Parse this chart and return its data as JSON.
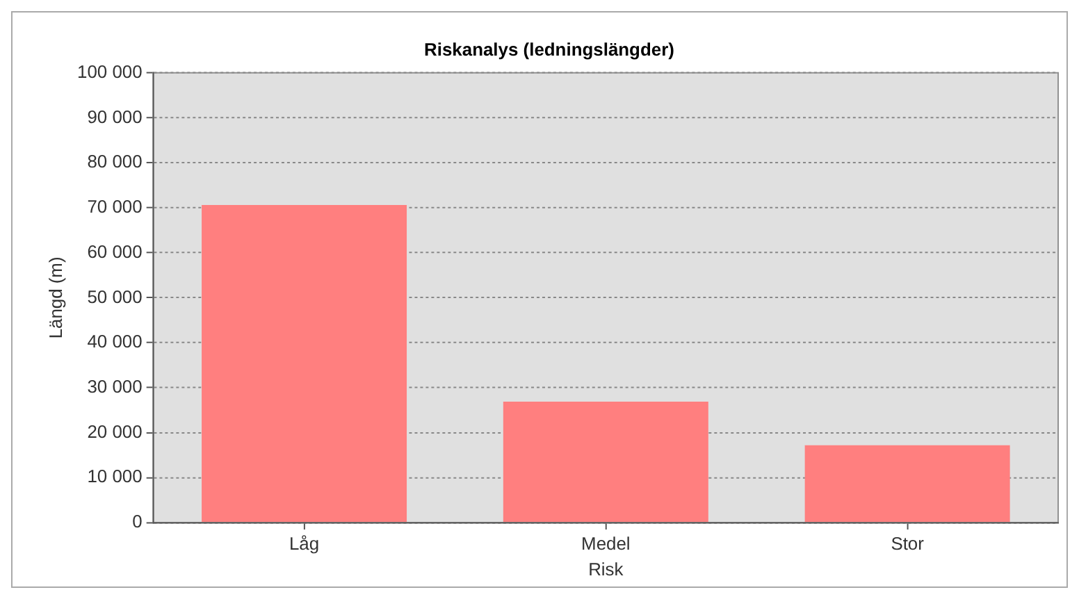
{
  "chart_data": {
    "type": "bar",
    "title": "Riskanalys (ledningslängder)",
    "xlabel": "Risk",
    "ylabel": "Längd (m)",
    "categories": [
      "Låg",
      "Medel",
      "Stor"
    ],
    "values": [
      70600,
      26900,
      17200
    ],
    "color": "#ff7f7f",
    "ylim": [
      0,
      100000
    ],
    "yticks": [
      0,
      {
        "value": 10000,
        "label": "10 000"
      },
      {
        "value": 20000,
        "label": "20 000"
      },
      {
        "value": 30000,
        "label": "30 000"
      },
      {
        "value": 40000,
        "label": "40 000"
      },
      {
        "value": 50000,
        "label": "50 000"
      },
      {
        "value": 60000,
        "label": "60 000"
      },
      {
        "value": 70000,
        "label": "70 000"
      },
      {
        "value": 80000,
        "label": "80 000"
      },
      {
        "value": 90000,
        "label": "90 000"
      },
      {
        "value": 100000,
        "label": "100 000"
      }
    ],
    "grid": "y"
  }
}
